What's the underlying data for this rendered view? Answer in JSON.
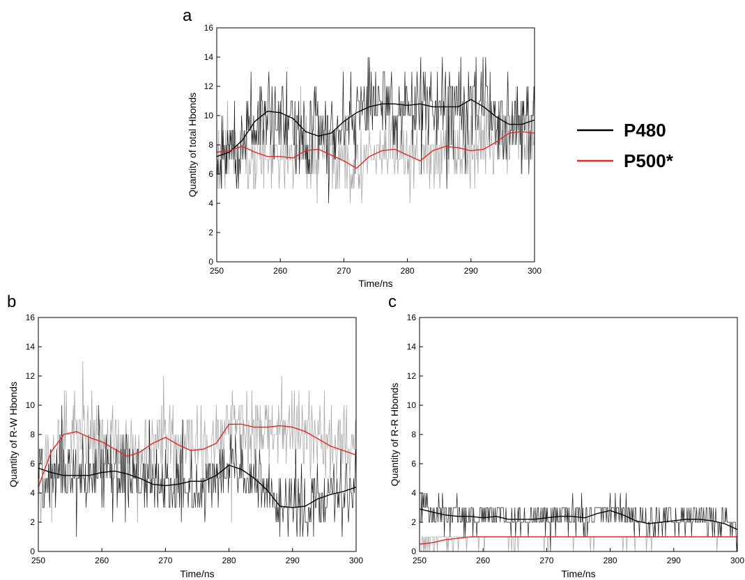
{
  "figure": {
    "legend": [
      {
        "label": "P480",
        "color": "#000000"
      },
      {
        "label": "P500*",
        "color": "#e8251f"
      }
    ],
    "raw_color": "#a9a9a9",
    "colors": {
      "P480": "#000000",
      "P500*": "#e8251f",
      "raw": "#a9a9a9"
    }
  },
  "chart_data": [
    {
      "type": "line",
      "panel": "a",
      "xlabel": "Time/ns",
      "ylabel": "Quantity of total Hbonds",
      "xlim": [
        250,
        300
      ],
      "ylim": [
        0,
        16
      ],
      "xticks": [
        250,
        260,
        270,
        280,
        290,
        300
      ],
      "yticks": [
        0,
        2,
        4,
        6,
        8,
        10,
        12,
        14,
        16
      ],
      "grid": false,
      "legend_position": "right",
      "series": [
        {
          "name": "P480",
          "kind": "smoothed",
          "x": [
            250,
            252,
            254,
            256,
            258,
            260,
            262,
            264,
            266,
            268,
            270,
            272,
            274,
            276,
            278,
            280,
            282,
            284,
            286,
            288,
            290,
            292,
            294,
            296,
            298,
            300
          ],
          "values": [
            7.2,
            7.5,
            8.3,
            9.6,
            10.3,
            10.2,
            9.8,
            8.9,
            8.6,
            8.8,
            9.6,
            10.2,
            10.6,
            10.8,
            10.8,
            10.7,
            10.8,
            10.6,
            10.6,
            10.6,
            11.1,
            10.6,
            9.9,
            9.4,
            9.4,
            9.7
          ]
        },
        {
          "name": "P500*",
          "kind": "smoothed",
          "x": [
            250,
            252,
            254,
            256,
            258,
            260,
            262,
            264,
            266,
            268,
            270,
            272,
            274,
            276,
            278,
            280,
            282,
            284,
            286,
            288,
            290,
            292,
            294,
            296,
            298,
            300
          ],
          "values": [
            7.5,
            7.6,
            7.9,
            7.5,
            7.2,
            7.2,
            7.1,
            7.6,
            7.7,
            7.3,
            6.9,
            6.4,
            7.2,
            7.6,
            7.7,
            7.3,
            6.9,
            7.6,
            7.9,
            7.8,
            7.6,
            7.7,
            8.2,
            8.8,
            8.9,
            8.8
          ]
        }
      ],
      "raw_noise": {
        "P480": {
          "mean": 10.2,
          "amp": 2.2,
          "min": 4,
          "max": 15
        },
        "P500*": {
          "mean": 7.6,
          "amp": 1.8,
          "min": 2,
          "max": 12
        }
      }
    },
    {
      "type": "line",
      "panel": "b",
      "xlabel": "Time/ns",
      "ylabel": "Quantity of R-W Hbonds",
      "xlim": [
        250,
        300
      ],
      "ylim": [
        0,
        16
      ],
      "xticks": [
        250,
        260,
        270,
        280,
        290,
        300
      ],
      "yticks": [
        0,
        2,
        4,
        6,
        8,
        10,
        12,
        14,
        16
      ],
      "grid": false,
      "series": [
        {
          "name": "P480",
          "kind": "smoothed",
          "x": [
            250,
            252,
            254,
            256,
            258,
            260,
            262,
            264,
            266,
            268,
            270,
            272,
            274,
            276,
            278,
            280,
            282,
            284,
            286,
            288,
            290,
            292,
            294,
            296,
            298,
            300
          ],
          "values": [
            5.7,
            5.4,
            5.2,
            5.2,
            5.2,
            5.4,
            5.5,
            5.3,
            5.0,
            4.6,
            4.5,
            4.6,
            4.8,
            4.8,
            5.2,
            5.9,
            5.6,
            5.0,
            4.2,
            3.1,
            3.0,
            3.1,
            3.6,
            3.9,
            4.1,
            4.4
          ]
        },
        {
          "name": "P500*",
          "kind": "smoothed",
          "x": [
            250,
            252,
            254,
            256,
            258,
            260,
            262,
            264,
            266,
            268,
            270,
            272,
            274,
            276,
            278,
            280,
            282,
            284,
            286,
            288,
            290,
            292,
            294,
            296,
            298,
            300
          ],
          "values": [
            4.4,
            6.8,
            8.0,
            8.2,
            7.8,
            7.5,
            7.0,
            6.5,
            6.8,
            7.4,
            7.8,
            7.3,
            6.9,
            7.0,
            7.4,
            8.7,
            8.7,
            8.5,
            8.5,
            8.6,
            8.5,
            8.2,
            7.7,
            7.2,
            6.9,
            6.6
          ]
        }
      ],
      "raw_noise": {
        "P480": {
          "mean": 4.8,
          "amp": 1.8,
          "min": 1,
          "max": 10
        },
        "P500*": {
          "mean": 7.6,
          "amp": 2.2,
          "min": 2,
          "max": 15
        }
      }
    },
    {
      "type": "line",
      "panel": "c",
      "xlabel": "Time/ns",
      "ylabel": "Quantity of R-R Hbonds",
      "xlim": [
        250,
        300
      ],
      "ylim": [
        0,
        16
      ],
      "xticks": [
        250,
        260,
        270,
        280,
        290,
        300
      ],
      "yticks": [
        0,
        2,
        4,
        6,
        8,
        10,
        12,
        14,
        16
      ],
      "grid": false,
      "series": [
        {
          "name": "P480",
          "kind": "smoothed",
          "x": [
            250,
            252,
            254,
            256,
            258,
            260,
            262,
            264,
            266,
            268,
            270,
            272,
            274,
            276,
            278,
            280,
            282,
            284,
            286,
            288,
            290,
            292,
            294,
            296,
            298,
            300
          ],
          "values": [
            2.9,
            2.7,
            2.5,
            2.4,
            2.4,
            2.3,
            2.4,
            2.2,
            2.2,
            2.2,
            2.3,
            2.4,
            2.4,
            2.3,
            2.6,
            2.8,
            2.5,
            2.1,
            1.9,
            2.0,
            2.1,
            2.2,
            2.2,
            2.1,
            1.9,
            1.5
          ]
        },
        {
          "name": "P500*",
          "kind": "smoothed",
          "x": [
            250,
            252,
            254,
            256,
            258,
            260,
            262,
            264,
            266,
            268,
            270,
            272,
            274,
            276,
            278,
            280,
            282,
            284,
            286,
            288,
            290,
            292,
            294,
            296,
            298,
            300
          ],
          "values": [
            0.5,
            0.6,
            0.8,
            0.9,
            1.0,
            1.0,
            1.0,
            1.0,
            1.0,
            1.0,
            1.0,
            1.0,
            1.0,
            1.0,
            1.0,
            1.0,
            1.0,
            1.0,
            1.0,
            1.0,
            1.0,
            1.0,
            1.0,
            1.0,
            1.0,
            1.0
          ]
        }
      ],
      "raw_noise": {
        "P480": {
          "mean": 2.3,
          "amp": 0.9,
          "min": 0,
          "max": 5
        },
        "P500*": {
          "mean": 0.7,
          "amp": 0.4,
          "min": 0,
          "max": 1
        }
      }
    }
  ]
}
